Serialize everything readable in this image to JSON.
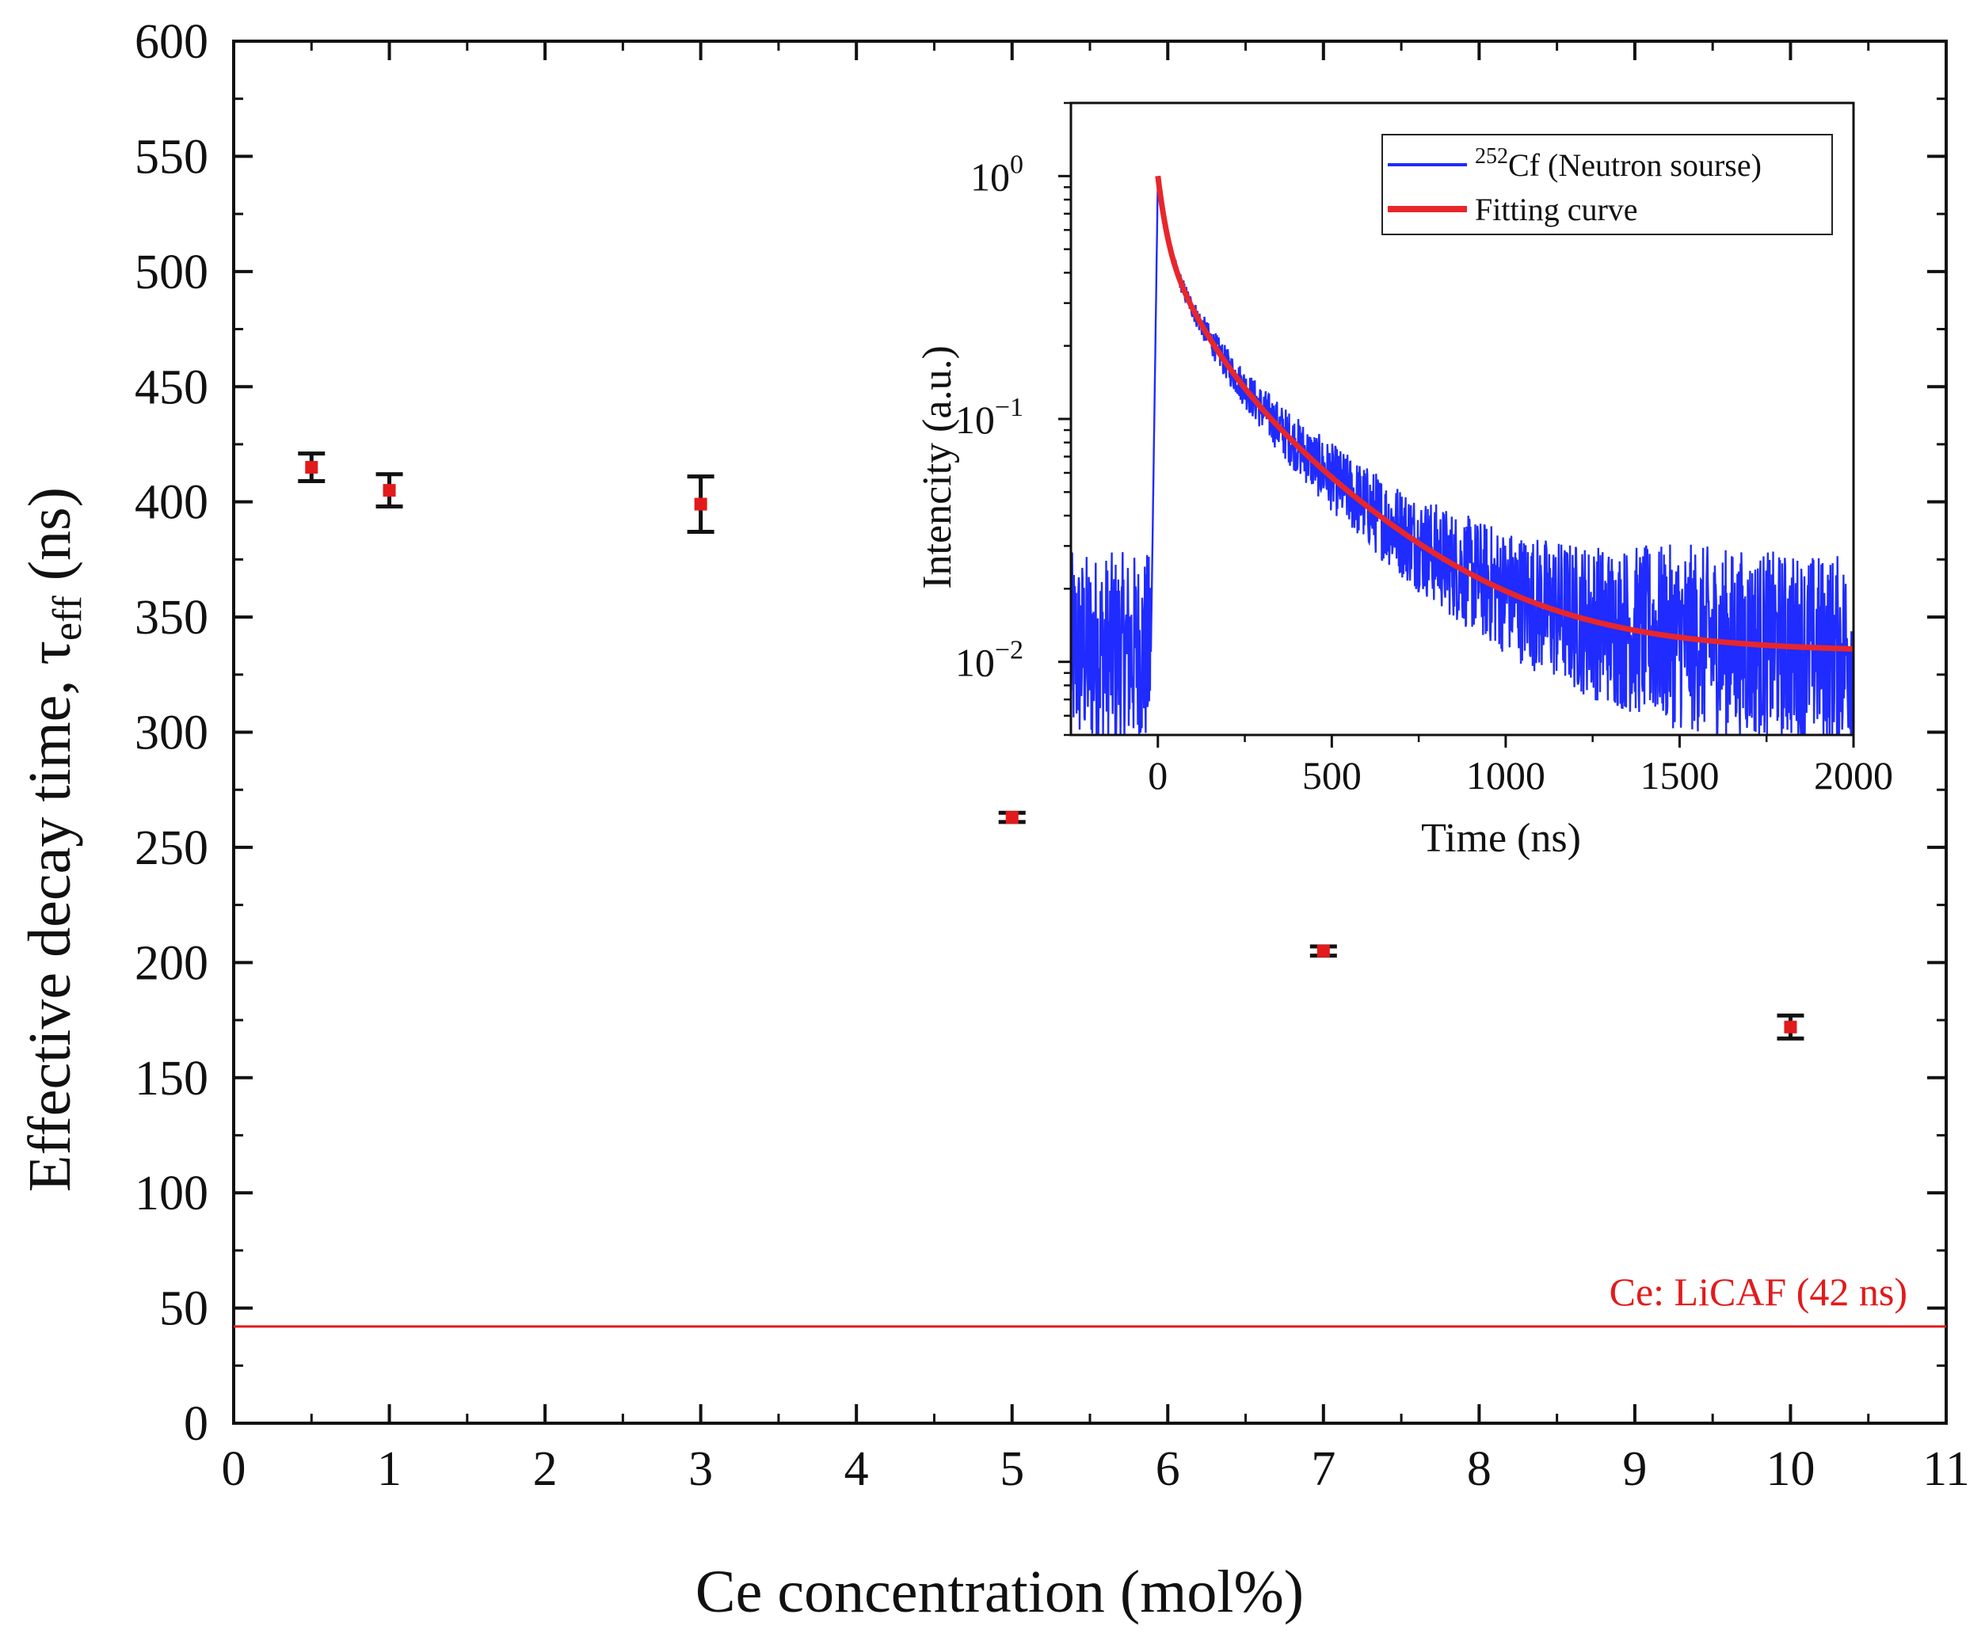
{
  "chart_data": [
    {
      "type": "scatter",
      "title": "",
      "xlabel": "Ce concentration (mol%)",
      "ylabel_main": "Effective decay time, τ",
      "ylabel_sub": "eff",
      "ylabel_unit": " (ns)",
      "xlim": [
        0,
        11
      ],
      "ylim": [
        0,
        600
      ],
      "xticks": [
        0,
        1,
        2,
        3,
        4,
        5,
        6,
        7,
        8,
        9,
        10,
        11
      ],
      "yticks": [
        0,
        50,
        100,
        150,
        200,
        250,
        300,
        350,
        400,
        450,
        500,
        550,
        600
      ],
      "series": [
        {
          "name": "Effective decay time",
          "color": "#e31a1c",
          "x": [
            0.5,
            1,
            3,
            5,
            7,
            10
          ],
          "y": [
            415,
            405,
            399,
            263,
            205,
            172
          ],
          "err": [
            6,
            7,
            12,
            2,
            2,
            5
          ]
        }
      ],
      "reference_line": {
        "y": 42,
        "label": "Ce: LiCAF (42 ns)",
        "color": "#e31a1c"
      }
    },
    {
      "type": "line",
      "title": "",
      "xlabel": "Time (ns)",
      "ylabel": "Intencity (a.u.)",
      "xlim": [
        -250,
        2000
      ],
      "ylim": [
        0.005,
        2
      ],
      "yscale": "log",
      "xticks": [
        0,
        500,
        1000,
        1500,
        2000
      ],
      "yticks": [
        {
          "value": 1,
          "base": "10",
          "exp": "0"
        },
        {
          "value": 0.1,
          "base": "10",
          "exp": "−1"
        },
        {
          "value": 0.01,
          "base": "10",
          "exp": "−2"
        }
      ],
      "legend_position": "top-right",
      "series": [
        {
          "name": "Cf (Neutron sourse)",
          "name_sup": "252",
          "color": "#1f2bff"
        },
        {
          "name": "Fitting curve",
          "color": "#e8262b"
        }
      ],
      "model": {
        "baseline": 0.011,
        "components": [
          {
            "a": 0.45,
            "tau": 20
          },
          {
            "a": 0.3,
            "tau": 90
          },
          {
            "a": 0.24,
            "tau": 300
          }
        ],
        "pre_level": 0.011
      }
    }
  ]
}
